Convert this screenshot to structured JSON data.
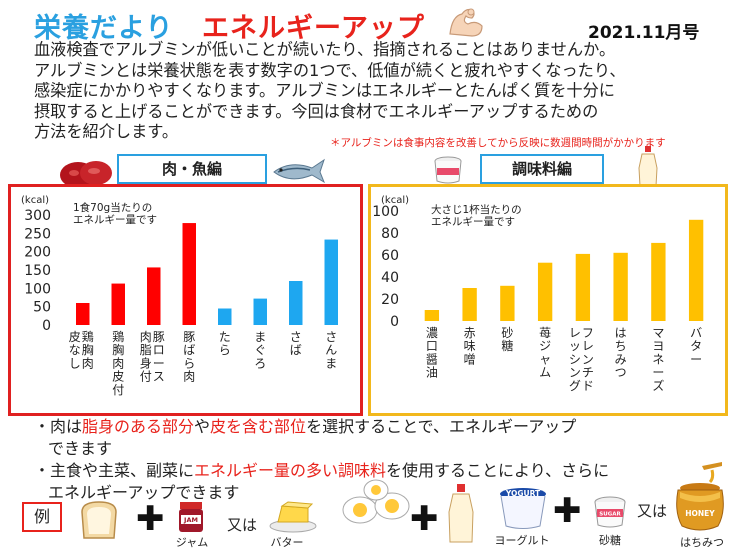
{
  "header": {
    "title": "栄養だより",
    "subtitle": "エネルギーアップ",
    "issue": "2021.11月号"
  },
  "intro": [
    "血液検査でアルブミンが低いことが続いたり、指摘されることはありませんか。",
    "アルブミンとは栄養状態を表す数字の1つで、低値が続くと疲れやすくなったり、",
    "感染症にかかりやすくなります。アルブミンはエネルギーとたんぱく質を十分に",
    "摂取すると上げることができます。今回は食材でエネルギーアップするための",
    "方法を紹介します。"
  ],
  "note": "＊アルブミンは食事内容を改善してから反映に数週間時間がかかります",
  "sections": {
    "meat_fish": "肉・魚編",
    "seasoning": "調味料編"
  },
  "chart_data": [
    {
      "type": "bar",
      "unit_label": "(kcal)",
      "subtitle_lines": [
        "1食70g当たりの",
        "エネルギー量です"
      ],
      "categories": [
        "鶏胸肉皮なし",
        "鶏胸肉皮付",
        "豚ロース肉脂身付",
        "豚ばら肉",
        "たら",
        "まぐろ",
        "さば",
        "さんま"
      ],
      "values": [
        60,
        113,
        157,
        278,
        45,
        72,
        120,
        233
      ],
      "colors": [
        "#ff0000",
        "#ff0000",
        "#ff0000",
        "#ff0000",
        "#1ea7f0",
        "#1ea7f0",
        "#1ea7f0",
        "#1ea7f0"
      ],
      "ylim": [
        0,
        300
      ],
      "yticks": [
        0,
        50,
        100,
        150,
        200,
        250,
        300
      ],
      "grid": false
    },
    {
      "type": "bar",
      "unit_label": "(kcal)",
      "subtitle_lines": [
        "大さじ1杯当たりの",
        "エネルギー量です"
      ],
      "categories": [
        "濃口醤油",
        "赤味噌",
        "砂糖",
        "苺ジャム",
        "フレンチドレッシング",
        "はちみつ",
        "マヨネーズ",
        "バター"
      ],
      "values": [
        10,
        30,
        32,
        53,
        61,
        62,
        71,
        92
      ],
      "colors": [
        "#ffc000",
        "#ffc000",
        "#ffc000",
        "#ffc000",
        "#ffc000",
        "#ffc000",
        "#ffc000",
        "#ffc000"
      ],
      "ylim": [
        0,
        100
      ],
      "yticks": [
        0,
        20,
        40,
        60,
        80,
        100
      ],
      "grid": false
    }
  ],
  "bullets": {
    "b1_a": "・肉は",
    "b1_r1": "脂身のある部分",
    "b1_b": "や",
    "b1_r2": "皮を含む部位",
    "b1_c": "を選択することで、エネルギーアップ",
    "b1_d": "できます",
    "b2_a": "・主食や主菜、副菜に",
    "b2_r1": "エネルギー量の多い調味料",
    "b2_b": "を使用することにより、さらに",
    "b2_c": "エネルギーアップできます"
  },
  "example": {
    "label": "例",
    "jam_label": "ジャム",
    "or1": "又は",
    "butter_label": "バター",
    "yogurt_label": "ヨーグルト",
    "sugar_label": "砂糖",
    "or2": "又は",
    "honey_label": "はちみつ",
    "jam_text": "JAM",
    "sugar_text": "SUGAR",
    "yogurt_text": "YOGURT",
    "honey_text": "HONEY",
    "plus": "✚"
  },
  "icons": [
    "flexed-arm-icon",
    "meat-icon",
    "fish-icon",
    "sugar-cup-icon",
    "mayonnaise-icon",
    "bread-icon",
    "jam-jar-icon",
    "butter-icon",
    "boiled-egg-icon",
    "mayonnaise-bottle-icon",
    "yogurt-cup-icon",
    "sugar-bowl-icon",
    "honey-pot-icon"
  ]
}
